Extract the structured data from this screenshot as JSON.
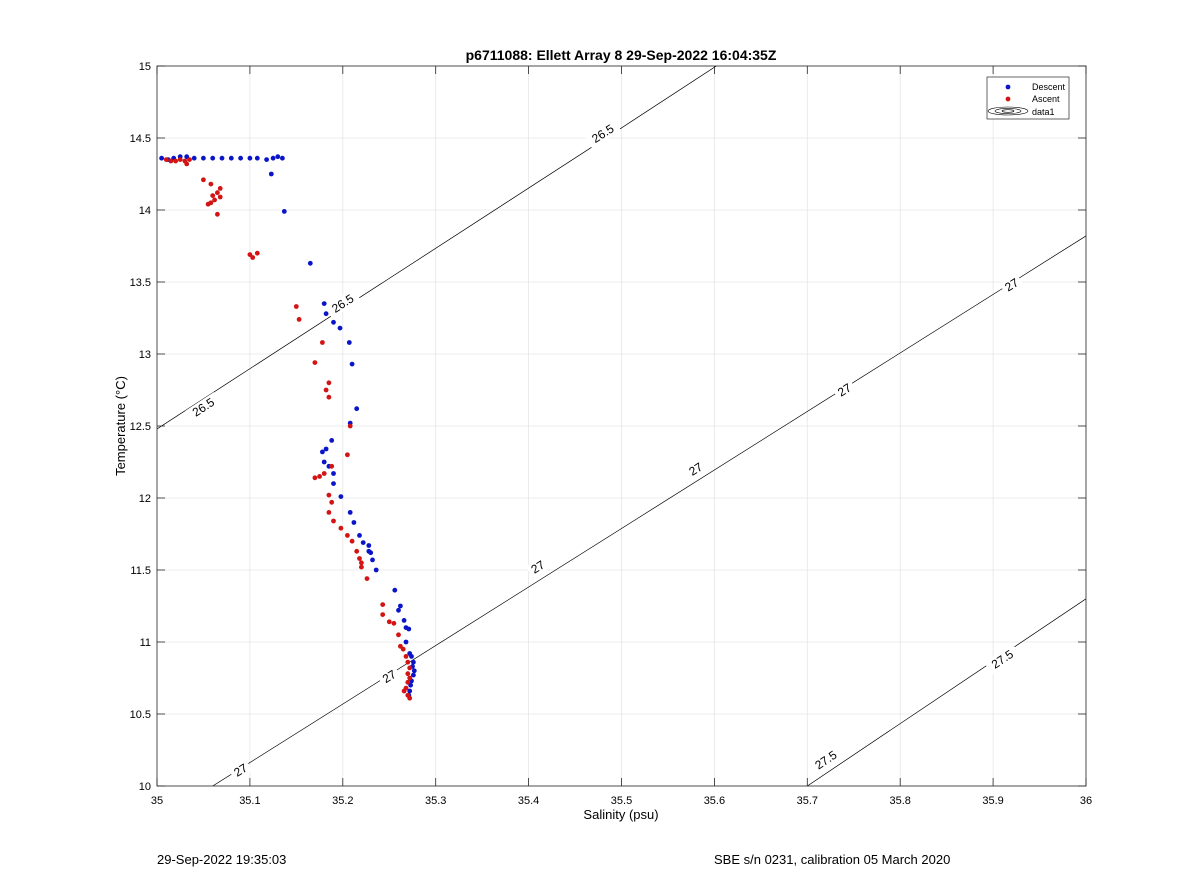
{
  "chart_data": {
    "type": "scatter",
    "title": "p6711088: Ellett Array 8 29-Sep-2022 16:04:35Z",
    "xlabel": "Salinity (psu)",
    "ylabel": "Temperature (°C)",
    "xlim": [
      35,
      36
    ],
    "ylim": [
      10,
      15
    ],
    "xticks": [
      "35",
      "35.1",
      "35.2",
      "35.3",
      "35.4",
      "35.5",
      "35.6",
      "35.7",
      "35.8",
      "35.9",
      "36"
    ],
    "yticks": [
      "10",
      "10.5",
      "11",
      "11.5",
      "12",
      "12.5",
      "13",
      "13.5",
      "14",
      "14.5",
      "15"
    ],
    "grid": true,
    "legend_position": "top-right",
    "legend": [
      "Descent",
      "Ascent",
      "data1"
    ],
    "colors": {
      "descent": "#0a14c8",
      "ascent": "#d21414",
      "contour": "#000000",
      "grid": "#e6e6e6"
    },
    "contours": [
      {
        "label": "26.5",
        "points": [
          [
            35.0,
            12.48
          ],
          [
            35.5,
            14.57
          ],
          [
            35.69,
            15.37
          ]
        ]
      },
      {
        "label": "27",
        "points": [
          [
            35.06,
            10.0
          ],
          [
            36.0,
            13.82
          ]
        ]
      },
      {
        "label": "27.5",
        "points": [
          [
            35.7,
            10.0
          ],
          [
            36.0,
            11.3
          ]
        ]
      }
    ],
    "contour_labels": [
      {
        "text": "26.5",
        "x": 35.48,
        "y": 14.53
      },
      {
        "text": "26.5",
        "x": 35.2,
        "y": 13.35
      },
      {
        "text": "26.5",
        "x": 35.05,
        "y": 12.63
      },
      {
        "text": "27",
        "x": 35.92,
        "y": 13.48
      },
      {
        "text": "27",
        "x": 35.74,
        "y": 12.75
      },
      {
        "text": "27",
        "x": 35.58,
        "y": 12.2
      },
      {
        "text": "27",
        "x": 35.41,
        "y": 11.52
      },
      {
        "text": "27",
        "x": 35.25,
        "y": 10.76
      },
      {
        "text": "27",
        "x": 35.09,
        "y": 10.11
      },
      {
        "text": "27.5",
        "x": 35.91,
        "y": 10.88
      },
      {
        "text": "27.5",
        "x": 35.72,
        "y": 10.18
      }
    ],
    "series": [
      {
        "name": "Descent",
        "marker": "dot",
        "points": [
          [
            35.005,
            14.36
          ],
          [
            35.012,
            14.35
          ],
          [
            35.018,
            14.36
          ],
          [
            35.025,
            14.37
          ],
          [
            35.032,
            14.37
          ],
          [
            35.04,
            14.36
          ],
          [
            35.05,
            14.36
          ],
          [
            35.06,
            14.36
          ],
          [
            35.07,
            14.36
          ],
          [
            35.08,
            14.36
          ],
          [
            35.09,
            14.36
          ],
          [
            35.1,
            14.36
          ],
          [
            35.108,
            14.36
          ],
          [
            35.118,
            14.35
          ],
          [
            35.125,
            14.36
          ],
          [
            35.13,
            14.37
          ],
          [
            35.135,
            14.36
          ],
          [
            35.123,
            14.25
          ],
          [
            35.137,
            13.99
          ],
          [
            35.165,
            13.63
          ],
          [
            35.18,
            13.35
          ],
          [
            35.182,
            13.28
          ],
          [
            35.19,
            13.22
          ],
          [
            35.197,
            13.18
          ],
          [
            35.207,
            13.08
          ],
          [
            35.21,
            12.93
          ],
          [
            35.215,
            12.62
          ],
          [
            35.208,
            12.52
          ],
          [
            35.188,
            12.4
          ],
          [
            35.182,
            12.34
          ],
          [
            35.178,
            12.32
          ],
          [
            35.18,
            12.25
          ],
          [
            35.185,
            12.22
          ],
          [
            35.19,
            12.17
          ],
          [
            35.19,
            12.1
          ],
          [
            35.198,
            12.01
          ],
          [
            35.208,
            11.9
          ],
          [
            35.212,
            11.83
          ],
          [
            35.218,
            11.74
          ],
          [
            35.222,
            11.69
          ],
          [
            35.228,
            11.67
          ],
          [
            35.228,
            11.63
          ],
          [
            35.232,
            11.57
          ],
          [
            35.236,
            11.5
          ],
          [
            35.23,
            11.62
          ],
          [
            35.256,
            11.36
          ],
          [
            35.262,
            11.25
          ],
          [
            35.26,
            11.22
          ],
          [
            35.266,
            11.15
          ],
          [
            35.268,
            11.1
          ],
          [
            35.271,
            11.09
          ],
          [
            35.268,
            11.0
          ],
          [
            35.272,
            10.92
          ],
          [
            35.274,
            10.9
          ],
          [
            35.276,
            10.86
          ],
          [
            35.275,
            10.83
          ],
          [
            35.277,
            10.8
          ],
          [
            35.276,
            10.77
          ],
          [
            35.274,
            10.73
          ],
          [
            35.273,
            10.7
          ],
          [
            35.272,
            10.66
          ],
          [
            35.271,
            10.63
          ]
        ]
      },
      {
        "name": "Ascent",
        "marker": "dot",
        "points": [
          [
            35.01,
            14.35
          ],
          [
            35.015,
            14.34
          ],
          [
            35.02,
            14.34
          ],
          [
            35.025,
            14.35
          ],
          [
            35.03,
            14.34
          ],
          [
            35.032,
            14.32
          ],
          [
            35.035,
            14.35
          ],
          [
            35.05,
            14.21
          ],
          [
            35.058,
            14.18
          ],
          [
            35.06,
            14.1
          ],
          [
            35.065,
            14.12
          ],
          [
            35.068,
            14.15
          ],
          [
            35.068,
            14.09
          ],
          [
            35.062,
            14.07
          ],
          [
            35.058,
            14.05
          ],
          [
            35.055,
            14.04
          ],
          [
            35.065,
            13.97
          ],
          [
            35.1,
            13.69
          ],
          [
            35.103,
            13.67
          ],
          [
            35.108,
            13.7
          ],
          [
            35.15,
            13.33
          ],
          [
            35.153,
            13.24
          ],
          [
            35.17,
            12.94
          ],
          [
            35.178,
            13.08
          ],
          [
            35.185,
            12.8
          ],
          [
            35.182,
            12.75
          ],
          [
            35.185,
            12.7
          ],
          [
            35.208,
            12.5
          ],
          [
            35.205,
            12.3
          ],
          [
            35.17,
            12.14
          ],
          [
            35.175,
            12.15
          ],
          [
            35.18,
            12.17
          ],
          [
            35.188,
            12.22
          ],
          [
            35.185,
            12.02
          ],
          [
            35.188,
            11.97
          ],
          [
            35.185,
            11.9
          ],
          [
            35.19,
            11.84
          ],
          [
            35.198,
            11.79
          ],
          [
            35.205,
            11.74
          ],
          [
            35.21,
            11.7
          ],
          [
            35.215,
            11.63
          ],
          [
            35.218,
            11.58
          ],
          [
            35.22,
            11.55
          ],
          [
            35.22,
            11.52
          ],
          [
            35.226,
            11.44
          ],
          [
            35.243,
            11.26
          ],
          [
            35.243,
            11.19
          ],
          [
            35.25,
            11.14
          ],
          [
            35.255,
            11.13
          ],
          [
            35.26,
            11.05
          ],
          [
            35.262,
            10.97
          ],
          [
            35.265,
            10.95
          ],
          [
            35.268,
            10.9
          ],
          [
            35.27,
            10.86
          ],
          [
            35.272,
            10.82
          ],
          [
            35.27,
            10.78
          ],
          [
            35.272,
            10.75
          ],
          [
            35.27,
            10.72
          ],
          [
            35.268,
            10.68
          ],
          [
            35.266,
            10.66
          ],
          [
            35.27,
            10.63
          ],
          [
            35.272,
            10.61
          ]
        ]
      }
    ]
  },
  "footer": {
    "left": "29-Sep-2022 19:35:03",
    "right": "SBE s/n 0231, calibration 05 March 2020"
  }
}
